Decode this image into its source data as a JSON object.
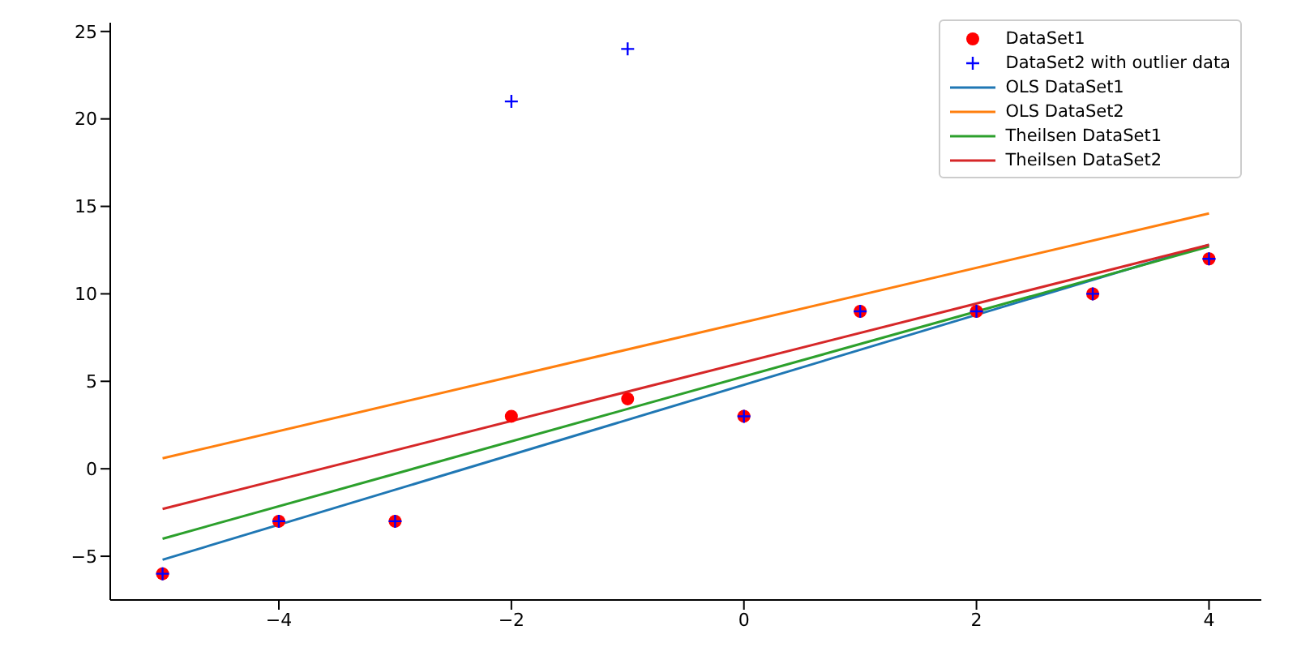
{
  "chart_data": {
    "type": "scatter",
    "xlim": [
      -5.45,
      4.45
    ],
    "xticks": [
      -4,
      -2,
      0,
      2,
      4
    ],
    "ylim": [
      -7.5,
      25.5
    ],
    "yticks": [
      -5,
      0,
      5,
      10,
      15,
      20,
      25
    ],
    "grid": false,
    "legend": "top right",
    "series": [
      {
        "name": "DataSet1",
        "marker": "circle",
        "color": "#ff0000",
        "x": [
          -5,
          -4,
          -3,
          -2,
          -1,
          0,
          1,
          2,
          3,
          4
        ],
        "values": [
          -6,
          -3,
          -3,
          3,
          4,
          3,
          9,
          9,
          10,
          12
        ]
      },
      {
        "name": "DataSet2 with outlier data",
        "marker": "cross",
        "color": "#0000ff",
        "x": [
          -5,
          -4,
          -3,
          -2,
          -1,
          0,
          1,
          2,
          3,
          4
        ],
        "values": [
          -6,
          -3,
          -3,
          21,
          24,
          3,
          9,
          9,
          10,
          12
        ]
      },
      {
        "name": "OLS DataSet1",
        "type": "line",
        "marker": "none",
        "color": "#1f77b4",
        "x": [
          -5,
          4
        ],
        "values": [
          -5.2,
          12.8
        ]
      },
      {
        "name": "OLS DataSet2",
        "type": "line",
        "marker": "none",
        "color": "#ff7f0e",
        "x": [
          -5,
          4
        ],
        "values": [
          0.6,
          14.6
        ]
      },
      {
        "name": "Theilsen DataSet1",
        "type": "line",
        "marker": "none",
        "color": "#2ca02c",
        "x": [
          -5,
          4
        ],
        "values": [
          -4,
          12.7
        ]
      },
      {
        "name": "Theilsen DataSet2",
        "type": "line",
        "marker": "none",
        "color": "#d62728",
        "x": [
          -5,
          4
        ],
        "values": [
          -2.3,
          12.8
        ]
      }
    ]
  }
}
